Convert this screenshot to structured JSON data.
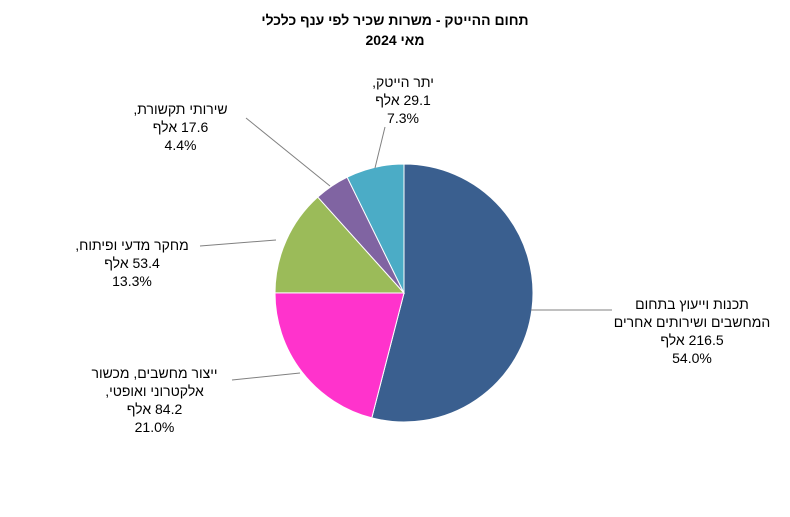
{
  "chart_data": {
    "type": "pie",
    "title": "תחום ההייטק - משרות שכיר לפי ענף כלכלי",
    "subtitle": "מאי 2024",
    "categories": [
      "תכנות וייעוץ  בתחום המחשבים ושירותים אחרים",
      "ייצור מחשבים, מכשור אלקטרוני ואופטי,",
      "מחקר מדעי ופיתוח,",
      "שירותי תקשורת,",
      "יתר הייטק,"
    ],
    "values": [
      216.5,
      84.2,
      53.4,
      17.6,
      29.1
    ],
    "value_labels": [
      "216.5 אלף",
      "84.2 אלף",
      "53.4 אלף",
      "17.6 אלף",
      "29.1 אלף"
    ],
    "percent_labels": [
      "54.0%",
      "21.0%",
      "13.3%",
      "4.4%",
      "7.3%"
    ],
    "colors": [
      "#3a5f8f",
      "#ff33cc",
      "#9bbb59",
      "#8064a2",
      "#4bacc6"
    ]
  }
}
